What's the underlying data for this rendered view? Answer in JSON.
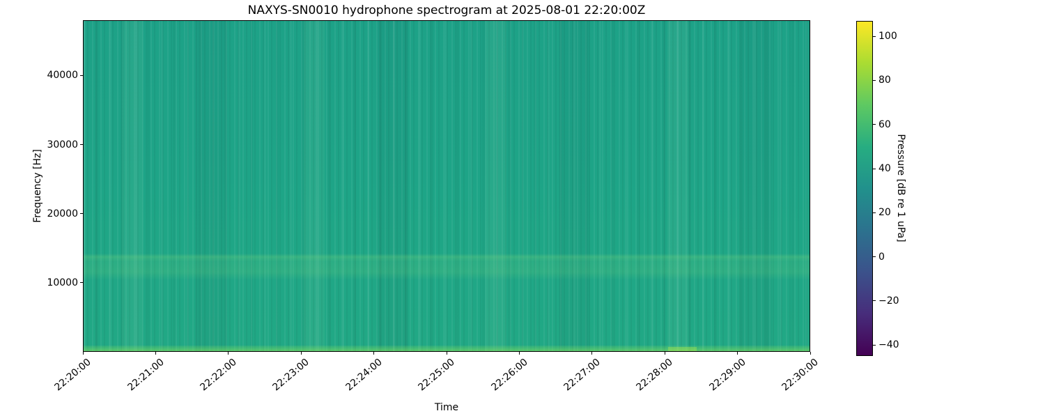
{
  "title": "NAXYS-SN0010 hydrophone spectrogram at 2025-08-01 22:20:00Z",
  "axes": {
    "x": {
      "label": "Time"
    },
    "y": {
      "label": "Frequency [Hz]"
    }
  },
  "colorbar": {
    "label": "Pressure [dB re 1 uPa]"
  },
  "chart_data": {
    "type": "heatmap",
    "subtype": "spectrogram",
    "title": "NAXYS-SN0010 hydrophone spectrogram at 2025-08-01 22:20:00Z",
    "xlabel": "Time",
    "ylabel": "Frequency [Hz]",
    "x_ticks": [
      "22:20:00",
      "22:21:00",
      "22:22:00",
      "22:23:00",
      "22:24:00",
      "22:25:00",
      "22:26:00",
      "22:27:00",
      "22:28:00",
      "22:29:00",
      "22:30:00"
    ],
    "x_range": [
      "22:20:00",
      "22:30:00"
    ],
    "y_range_hz": [
      0,
      48000
    ],
    "y_ticks_hz": [
      10000,
      20000,
      30000,
      40000
    ],
    "y_tick_labels": [
      "10000",
      "20000",
      "30000",
      "40000"
    ],
    "grid": false,
    "legend": false,
    "colorbar": {
      "label": "Pressure [dB re 1 uPa]",
      "colormap": "viridis",
      "position": "right",
      "ticks": [
        100,
        80,
        60,
        40,
        20,
        0,
        -20,
        -40
      ],
      "tick_labels": [
        "100",
        "80",
        "60",
        "40",
        "20",
        "0",
        "−20",
        "−40"
      ],
      "vmin": -45,
      "vmax": 107
    },
    "features": [
      {
        "name": "ambient-background",
        "freq_hz": [
          1500,
          48000
        ],
        "level_db": 46,
        "description": "near-uniform teal-green field over the whole record"
      },
      {
        "name": "mid-frequency-band",
        "freq_hz": [
          10300,
          13800
        ],
        "level_db": 52,
        "description": "slightly brighter horizontal band around 10-14 kHz"
      },
      {
        "name": "low-frequency-band",
        "freq_hz": [
          0,
          800
        ],
        "level_db": 62,
        "description": "bright green strip along the bottom edge, brightest near 22:28"
      },
      {
        "name": "vertical-noise-striping",
        "level_db_variation": 3,
        "description": "narrow time-varying vertical streaks across all frequencies"
      }
    ],
    "colors": {
      "plot_base": "#1ea687",
      "low_band": "#49c56b",
      "mid_band": "#34b27d",
      "background": "#ffffff",
      "text": "#000000"
    }
  }
}
